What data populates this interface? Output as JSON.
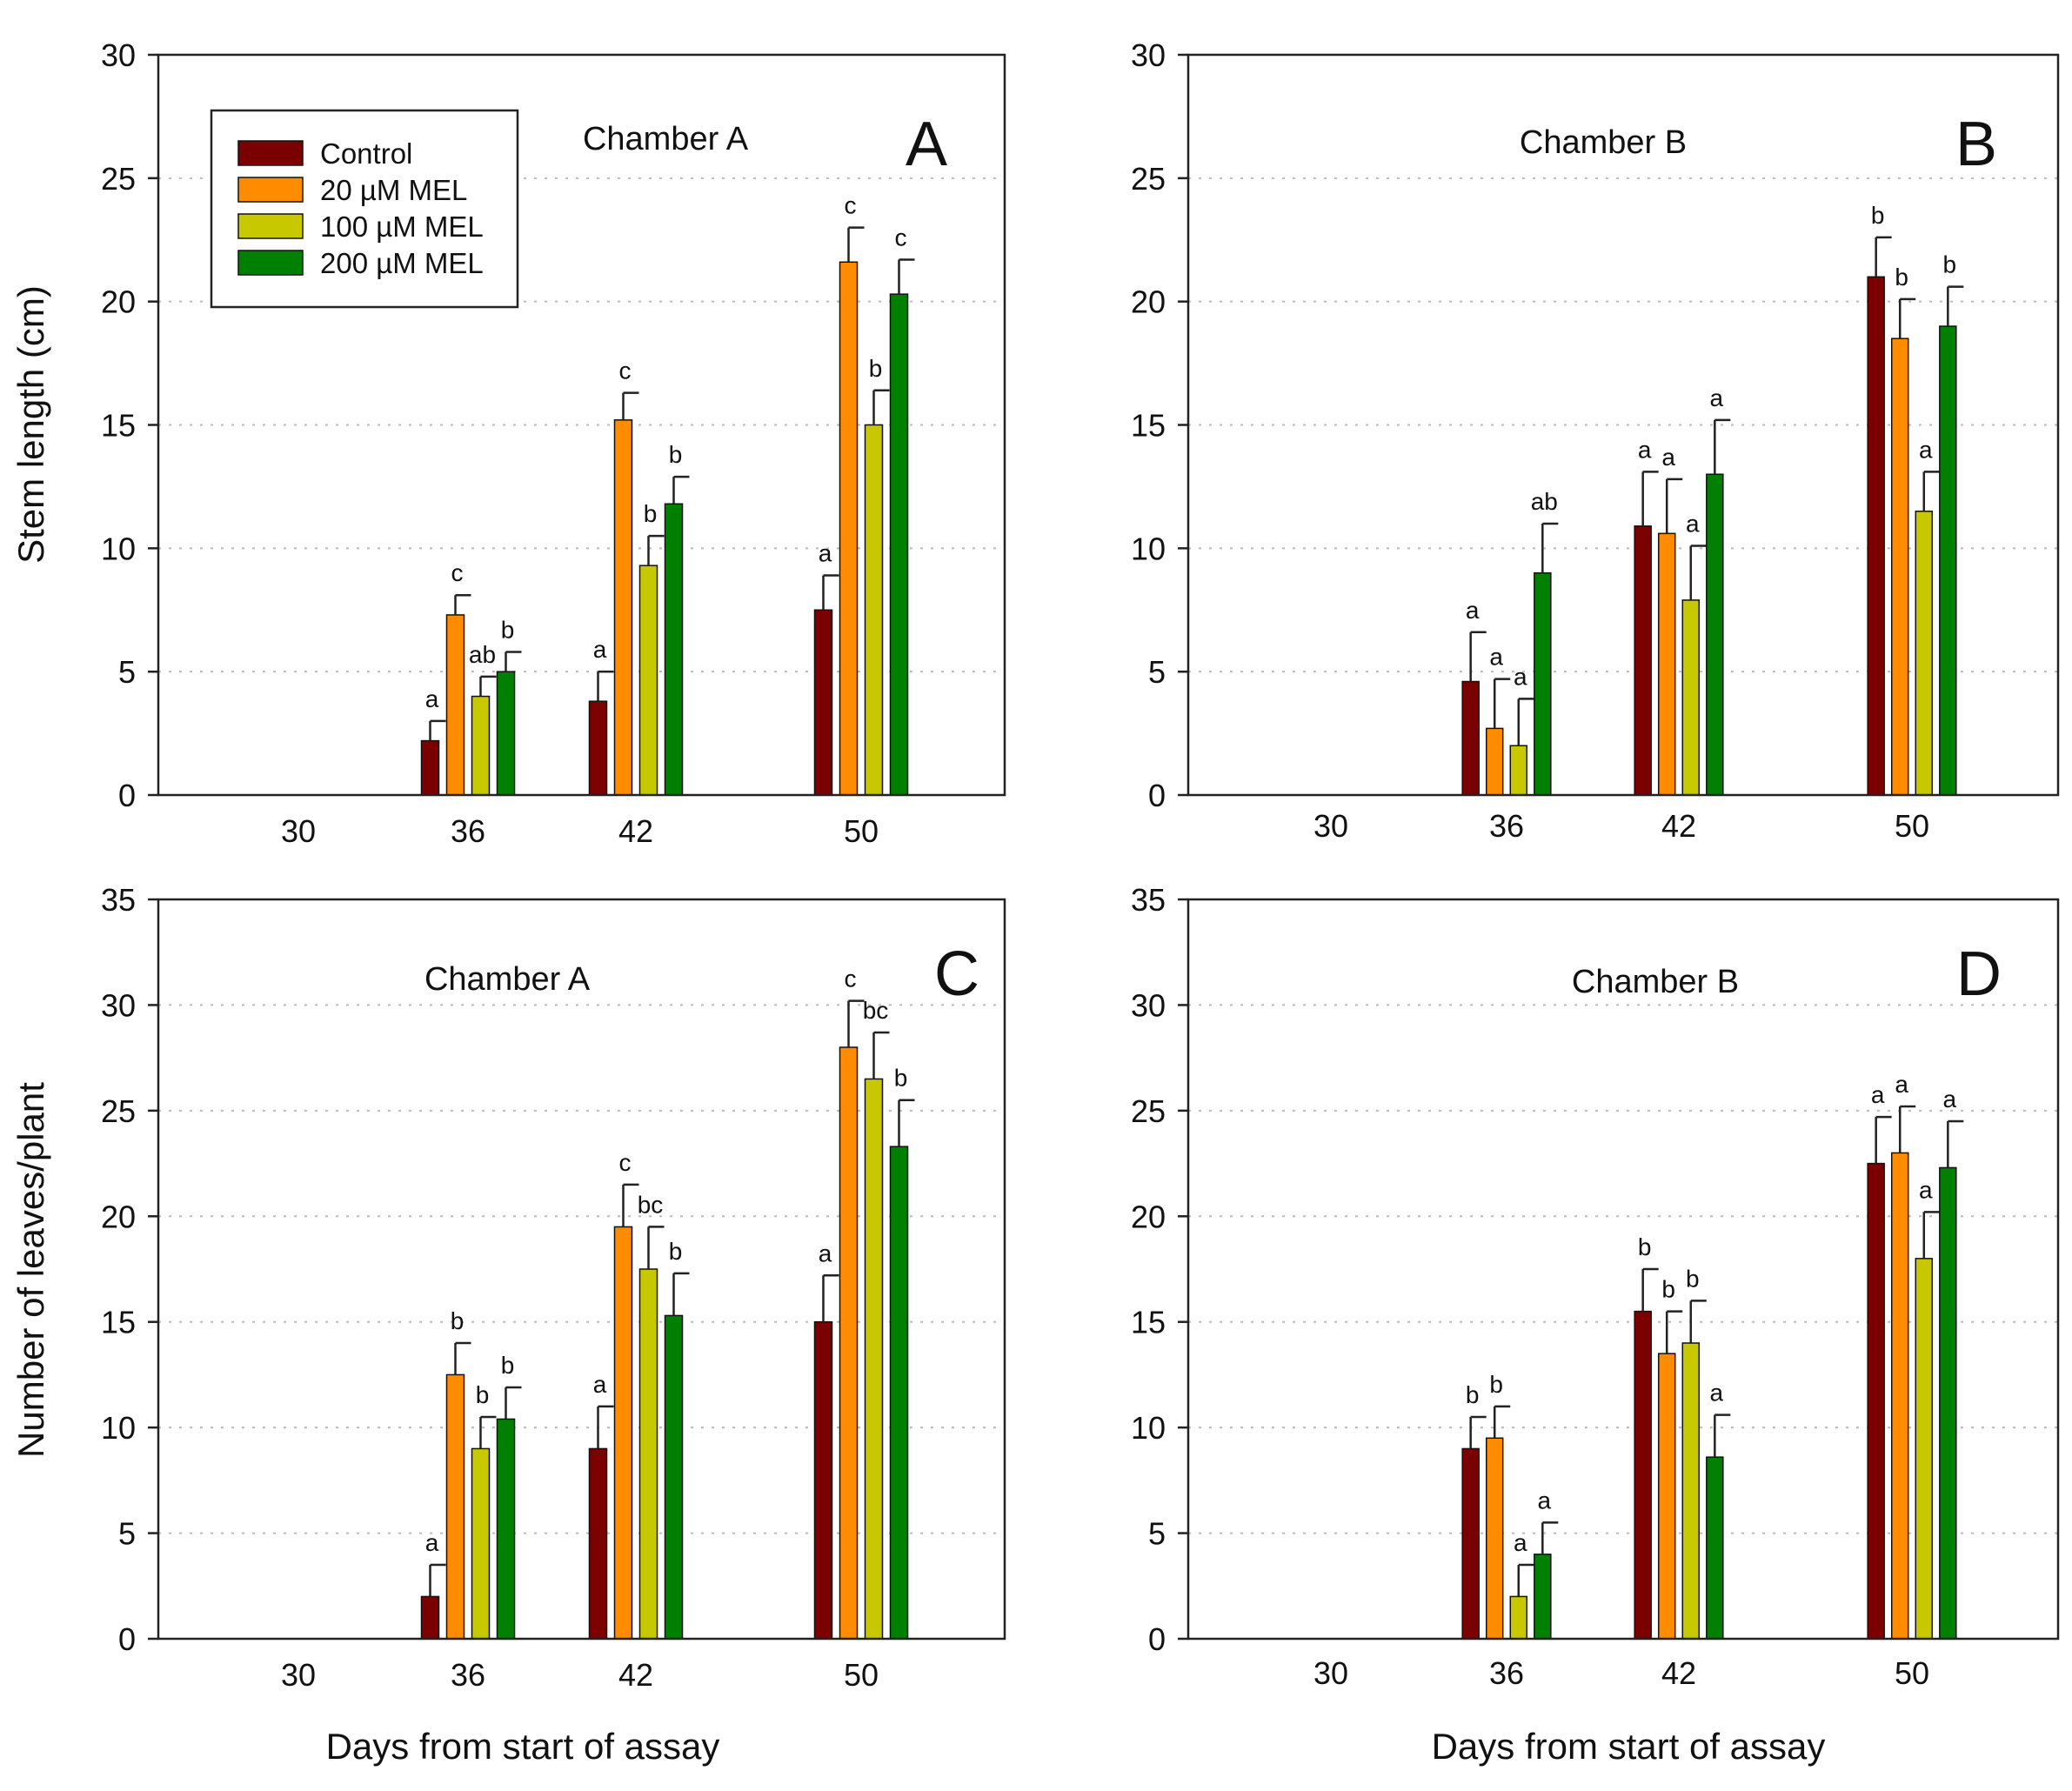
{
  "colors": {
    "control": "#7b0000",
    "mel20": "#ff8c00",
    "mel100": "#c8c800",
    "mel200": "#008000"
  },
  "legend": {
    "entries": [
      "Control",
      "20 µM MEL",
      "100 µM MEL",
      "200 µM MEL"
    ],
    "color_keys": [
      "control",
      "mel20",
      "mel100",
      "mel200"
    ]
  },
  "axis_titles": {
    "y_top": "Stem length (cm)",
    "y_bottom": "Number of leaves/plant",
    "x_left": "Days from start of assay",
    "x_right": "Days from start of assay"
  },
  "chart_data": [
    {
      "type": "bar",
      "panel": "A",
      "title": "Chamber A",
      "xlabel": "Days from start of assay",
      "ylabel": "Stem length (cm)",
      "ylim": [
        0,
        30
      ],
      "yticks": [
        0,
        5,
        10,
        15,
        20,
        25,
        30
      ],
      "categories": [
        "30",
        "36",
        "42",
        "50"
      ],
      "series": [
        {
          "name": "Control",
          "values": [
            null,
            2.2,
            3.8,
            7.5
          ],
          "errors": [
            null,
            0.8,
            1.2,
            1.4
          ],
          "labels": [
            null,
            "a",
            "a",
            "a"
          ]
        },
        {
          "name": "20 µM MEL",
          "values": [
            null,
            7.3,
            15.2,
            21.6
          ],
          "errors": [
            null,
            0.8,
            1.1,
            1.4
          ],
          "labels": [
            null,
            "c",
            "c",
            "c"
          ]
        },
        {
          "name": "100 µM MEL",
          "values": [
            null,
            4.0,
            9.3,
            15.0
          ],
          "errors": [
            null,
            0.8,
            1.2,
            1.4
          ],
          "labels": [
            null,
            "ab",
            "b",
            "b"
          ]
        },
        {
          "name": "200 µM MEL",
          "values": [
            null,
            5.0,
            11.8,
            20.3
          ],
          "errors": [
            null,
            0.8,
            1.1,
            1.4
          ],
          "labels": [
            null,
            "b",
            "b",
            "c"
          ]
        }
      ]
    },
    {
      "type": "bar",
      "panel": "B",
      "title": "Chamber B",
      "xlabel": "Days from start of assay",
      "ylabel": "Stem length (cm)",
      "ylim": [
        0,
        30
      ],
      "yticks": [
        0,
        5,
        10,
        15,
        20,
        25,
        30
      ],
      "categories": [
        "30",
        "36",
        "42",
        "50"
      ],
      "series": [
        {
          "name": "Control",
          "values": [
            null,
            4.6,
            10.9,
            21.0
          ],
          "errors": [
            null,
            2.0,
            2.2,
            1.6
          ],
          "labels": [
            null,
            "a",
            "a",
            "b"
          ]
        },
        {
          "name": "20 µM MEL",
          "values": [
            null,
            2.7,
            10.6,
            18.5
          ],
          "errors": [
            null,
            2.0,
            2.2,
            1.6
          ],
          "labels": [
            null,
            "a",
            "a",
            "b"
          ]
        },
        {
          "name": "100 µM MEL",
          "values": [
            null,
            2.0,
            7.9,
            11.5
          ],
          "errors": [
            null,
            1.9,
            2.2,
            1.6
          ],
          "labels": [
            null,
            "a",
            "a",
            "a"
          ]
        },
        {
          "name": "200 µM MEL",
          "values": [
            null,
            9.0,
            13.0,
            19.0
          ],
          "errors": [
            null,
            2.0,
            2.2,
            1.6
          ],
          "labels": [
            null,
            "ab",
            "a",
            "b"
          ]
        }
      ]
    },
    {
      "type": "bar",
      "panel": "C",
      "title": "Chamber A",
      "xlabel": "Days from start of assay",
      "ylabel": "Number of leaves/plant",
      "ylim": [
        0,
        35
      ],
      "yticks": [
        0,
        5,
        10,
        15,
        20,
        25,
        30,
        35
      ],
      "categories": [
        "30",
        "36",
        "42",
        "50"
      ],
      "series": [
        {
          "name": "Control",
          "values": [
            null,
            2.0,
            9.0,
            15.0
          ],
          "errors": [
            null,
            1.5,
            2.0,
            2.2
          ],
          "labels": [
            null,
            "a",
            "a",
            "a"
          ]
        },
        {
          "name": "20 µM MEL",
          "values": [
            null,
            12.5,
            19.5,
            28.0
          ],
          "errors": [
            null,
            1.5,
            2.0,
            2.2
          ],
          "labels": [
            null,
            "b",
            "c",
            "c"
          ]
        },
        {
          "name": "100 µM MEL",
          "values": [
            null,
            9.0,
            17.5,
            26.5
          ],
          "errors": [
            null,
            1.5,
            2.0,
            2.2
          ],
          "labels": [
            null,
            "b",
            "bc",
            "bc"
          ]
        },
        {
          "name": "200 µM MEL",
          "values": [
            null,
            10.4,
            15.3,
            23.3
          ],
          "errors": [
            null,
            1.5,
            2.0,
            2.2
          ],
          "labels": [
            null,
            "b",
            "b",
            "b"
          ]
        }
      ]
    },
    {
      "type": "bar",
      "panel": "D",
      "title": "Chamber B",
      "xlabel": "Days from start of assay",
      "ylabel": "Number of leaves/plant",
      "ylim": [
        0,
        35
      ],
      "yticks": [
        0,
        5,
        10,
        15,
        20,
        25,
        30,
        35
      ],
      "categories": [
        "30",
        "36",
        "42",
        "50"
      ],
      "series": [
        {
          "name": "Control",
          "values": [
            null,
            9.0,
            15.5,
            22.5
          ],
          "errors": [
            null,
            1.5,
            2.0,
            2.2
          ],
          "labels": [
            null,
            "b",
            "b",
            "a"
          ]
        },
        {
          "name": "20 µM MEL",
          "values": [
            null,
            9.5,
            13.5,
            23.0
          ],
          "errors": [
            null,
            1.5,
            2.0,
            2.2
          ],
          "labels": [
            null,
            "b",
            "b",
            "a"
          ]
        },
        {
          "name": "100 µM MEL",
          "values": [
            null,
            2.0,
            14.0,
            18.0
          ],
          "errors": [
            null,
            1.5,
            2.0,
            2.2
          ],
          "labels": [
            null,
            "a",
            "b",
            "a"
          ]
        },
        {
          "name": "200 µM MEL",
          "values": [
            null,
            4.0,
            8.6,
            22.3
          ],
          "errors": [
            null,
            1.5,
            2.0,
            2.2
          ],
          "labels": [
            null,
            "a",
            "a",
            "a"
          ]
        }
      ]
    }
  ]
}
